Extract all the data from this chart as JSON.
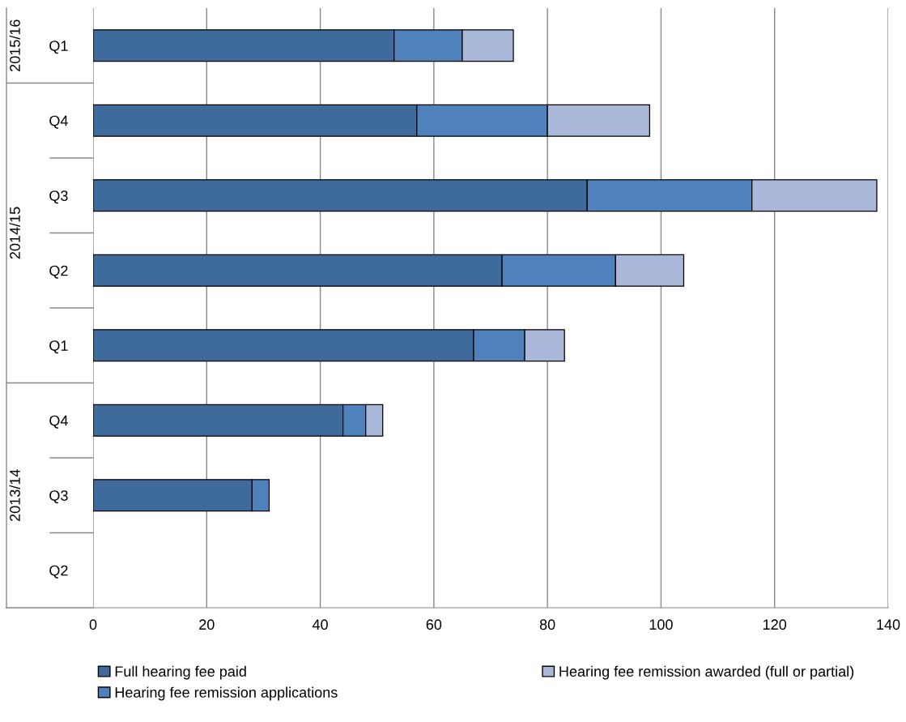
{
  "chart_data": {
    "type": "bar",
    "orientation": "horizontal",
    "stacked": true,
    "categories": [
      "Q1",
      "Q4",
      "Q3",
      "Q2",
      "Q1",
      "Q4",
      "Q3",
      "Q2"
    ],
    "series": [
      {
        "name": "Full hearing fee paid",
        "color": "#3f6a9c",
        "values": [
          53,
          57,
          87,
          72,
          67,
          44,
          28,
          null
        ]
      },
      {
        "name": "Hearing fee remission applications",
        "color": "#4f81bd",
        "values": [
          12,
          23,
          29,
          20,
          9,
          4,
          3,
          null
        ]
      },
      {
        "name": "Hearing fee remission awarded (full or partial)",
        "color": "#a9b8d8",
        "values": [
          9,
          18,
          22,
          12,
          7,
          3,
          null,
          null
        ]
      }
    ],
    "xlim": [
      0,
      140
    ],
    "xticks": [
      0,
      20,
      40,
      60,
      80,
      100,
      120,
      140
    ],
    "grid": "x",
    "legend": "bottom",
    "annotations": [
      "2015/16",
      "2014/15",
      "2013/14"
    ]
  }
}
